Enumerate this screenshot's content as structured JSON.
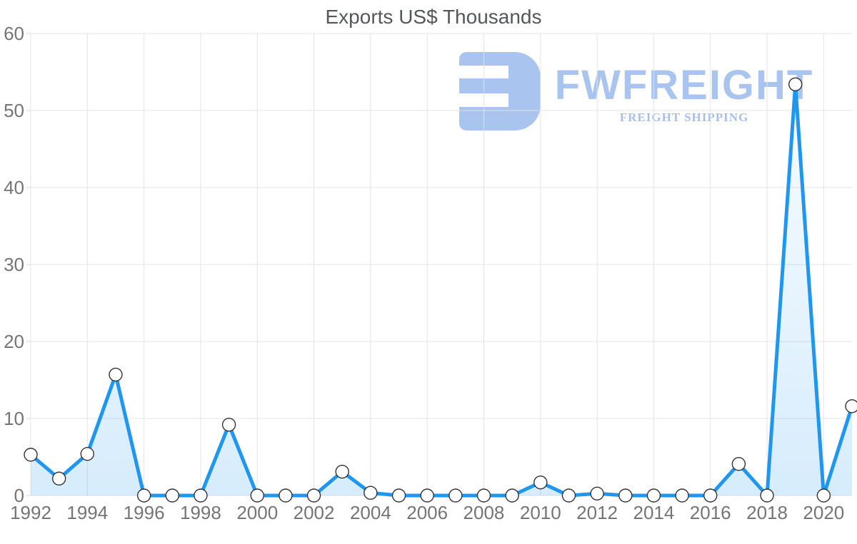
{
  "title": "Exports US$ Thousands",
  "logo": {
    "name": "FWFREIGHT",
    "tagline": "FREIGHT SHIPPING",
    "icon_color": "#a9c4ef",
    "name_color": "#a9c4ef",
    "tagline_color": "#a7bfee"
  },
  "chart_data": {
    "type": "area",
    "title": "Exports US$ Thousands",
    "xlabel": "",
    "ylabel": "",
    "x": [
      1992,
      1993,
      1994,
      1995,
      1996,
      1997,
      1998,
      1999,
      2000,
      2001,
      2002,
      2003,
      2004,
      2005,
      2006,
      2007,
      2008,
      2009,
      2010,
      2011,
      2012,
      2013,
      2014,
      2015,
      2016,
      2017,
      2018,
      2019,
      2020,
      2021
    ],
    "values": [
      5.3,
      2.2,
      5.4,
      15.7,
      0,
      0,
      0,
      9.2,
      0,
      0,
      0,
      3.1,
      0.35,
      0,
      0,
      0,
      0,
      0,
      1.7,
      0,
      0.25,
      0,
      0,
      0,
      0,
      4.1,
      0,
      53.4,
      0,
      11.6
    ],
    "ylim": [
      0,
      60
    ],
    "y_ticks": [
      0,
      10,
      20,
      30,
      40,
      50,
      60
    ],
    "x_tick_labels": [
      "1992",
      "1994",
      "1996",
      "1998",
      "2000",
      "2002",
      "2004",
      "2006",
      "2008",
      "2010",
      "2012",
      "2014",
      "2016",
      "2018",
      "2020"
    ],
    "grid": true,
    "legend": "none",
    "colors": {
      "line": "#1f97f0",
      "fill_top": "rgba(31,151,240,0.03)",
      "fill_bottom": "rgba(31,151,240,0.18)",
      "grid": "#e4e4e4",
      "tick": "#d6d6d6",
      "axis_text": "#757575",
      "marker_fill": "#ffffff",
      "marker_stroke": "#333333"
    }
  }
}
